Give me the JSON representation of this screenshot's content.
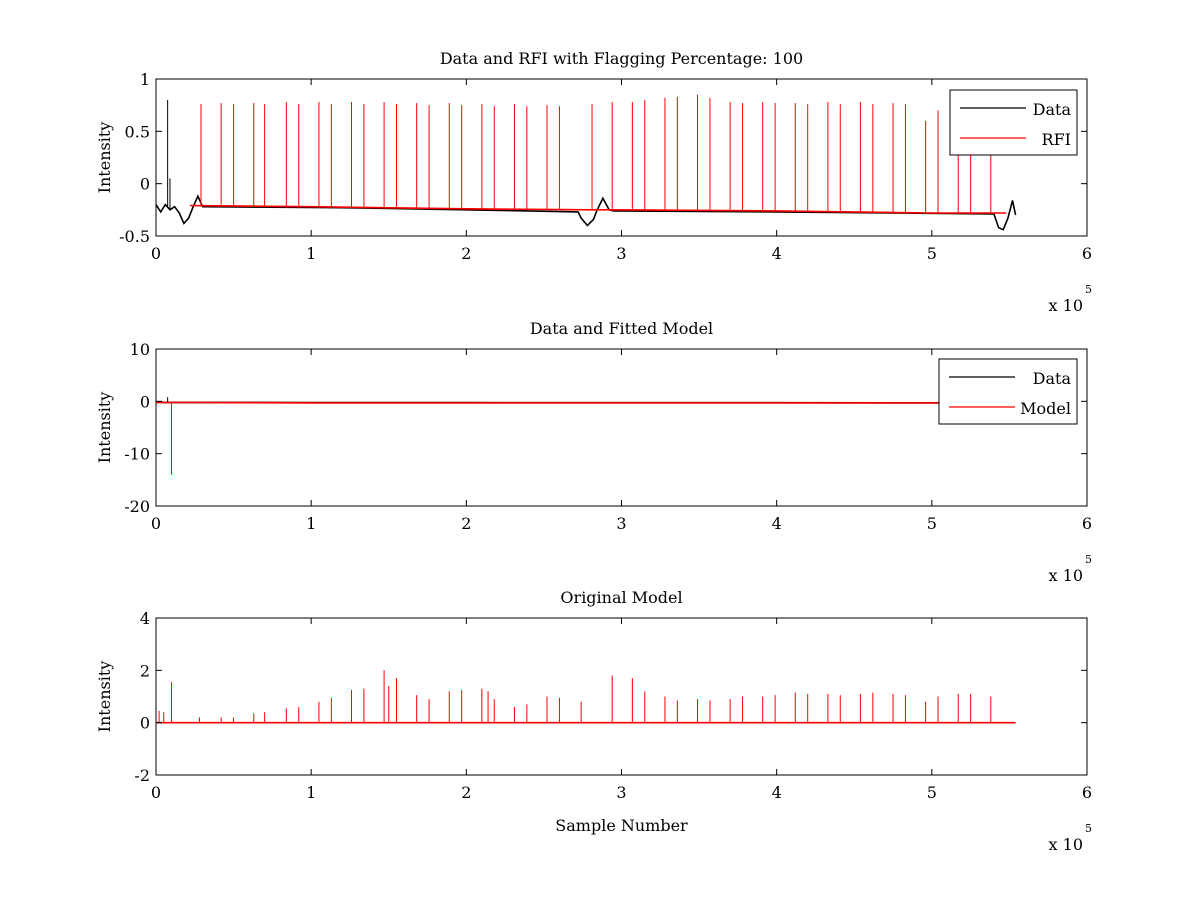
{
  "figure": {
    "background": "#ffffff"
  },
  "chart_data": [
    {
      "type": "line",
      "title": "Data and RFI with Flagging Percentage: 100",
      "xlabel": "",
      "ylabel": "Intensity",
      "xlim": [
        0,
        600000
      ],
      "ylim": [
        -0.5,
        1
      ],
      "xticks": [
        0,
        100000,
        200000,
        300000,
        400000,
        500000,
        600000
      ],
      "xtick_labels": [
        "0",
        "1",
        "2",
        "3",
        "4",
        "5",
        "6"
      ],
      "yticks": [
        -0.5,
        0,
        0.5,
        1
      ],
      "ytick_labels": [
        "-0.5",
        "0",
        "0.5",
        "1"
      ],
      "x_exponent": {
        "base": "x 10",
        "power": "5"
      },
      "grid": false,
      "legend": "top-right",
      "series": [
        {
          "name": "Data",
          "color": "#000000",
          "x": [
            0,
            3000,
            6000,
            9000,
            12000,
            15000,
            18000,
            21000,
            24000,
            27000,
            30000,
            120000,
            240000,
            272000,
            274000,
            278000,
            282000,
            284000,
            288000,
            292000,
            295000,
            400000,
            540000,
            543000,
            546000,
            549000,
            552000,
            554000
          ],
          "y": [
            -0.2,
            -0.27,
            -0.2,
            -0.25,
            -0.22,
            -0.28,
            -0.38,
            -0.33,
            -0.22,
            -0.12,
            -0.22,
            -0.23,
            -0.26,
            -0.27,
            -0.33,
            -0.4,
            -0.34,
            -0.26,
            -0.14,
            -0.25,
            -0.26,
            -0.27,
            -0.29,
            -0.42,
            -0.44,
            -0.33,
            -0.16,
            -0.3
          ],
          "spikes_x": [
            7500,
            9000
          ],
          "spikes_y": [
            0.8,
            0.05
          ]
        },
        {
          "name": "RFI",
          "color": "#ff0000",
          "x": [
            22000,
            100000,
            200000,
            280000,
            294000,
            400000,
            500000,
            548000
          ],
          "y": [
            -0.21,
            -0.22,
            -0.24,
            -0.25,
            -0.25,
            -0.26,
            -0.28,
            -0.28
          ],
          "spikes_x": [
            29000,
            42000,
            50000,
            63000,
            70000,
            84000,
            92000,
            105000,
            113000,
            126000,
            134000,
            147000,
            155000,
            168000,
            176000,
            189000,
            197000,
            210000,
            218000,
            231000,
            239000,
            252000,
            260000,
            281000,
            294000,
            307000,
            315000,
            328000,
            336000,
            349000,
            357000,
            370000,
            378000,
            391000,
            399000,
            412000,
            420000,
            433000,
            441000,
            454000,
            462000,
            475000,
            483000,
            496000,
            504000,
            517000,
            525000,
            538000
          ],
          "spikes_y": [
            0.76,
            0.77,
            0.76,
            0.77,
            0.76,
            0.78,
            0.76,
            0.78,
            0.76,
            0.78,
            0.76,
            0.78,
            0.76,
            0.77,
            0.75,
            0.77,
            0.75,
            0.76,
            0.74,
            0.76,
            0.74,
            0.75,
            0.74,
            0.76,
            0.78,
            0.78,
            0.8,
            0.82,
            0.83,
            0.85,
            0.82,
            0.78,
            0.77,
            0.78,
            0.77,
            0.77,
            0.76,
            0.78,
            0.76,
            0.78,
            0.76,
            0.77,
            0.76,
            0.6,
            0.7,
            0.6,
            0.75,
            0.6
          ]
        }
      ]
    },
    {
      "type": "line",
      "title": "Data and Fitted Model",
      "xlabel": "",
      "ylabel": "Intensity",
      "xlim": [
        0,
        600000
      ],
      "ylim": [
        -20,
        10
      ],
      "xticks": [
        0,
        100000,
        200000,
        300000,
        400000,
        500000,
        600000
      ],
      "xtick_labels": [
        "0",
        "1",
        "2",
        "3",
        "4",
        "5",
        "6"
      ],
      "yticks": [
        -20,
        -10,
        0,
        10
      ],
      "ytick_labels": [
        "-20",
        "-10",
        "0",
        "10"
      ],
      "x_exponent": {
        "base": "x 10",
        "power": "5"
      },
      "grid": false,
      "legend": "top-right",
      "series": [
        {
          "name": "Data",
          "color": "#000000",
          "x": [
            0,
            100000,
            200000,
            300000,
            400000,
            500000,
            554000
          ],
          "y": [
            -0.2,
            -0.23,
            -0.25,
            -0.26,
            -0.27,
            -0.28,
            -0.3
          ],
          "spikes_x": [
            7500
          ],
          "spikes_y": [
            0.8
          ]
        },
        {
          "name": "Model",
          "color": "#ff0000",
          "x": [
            0,
            100000,
            200000,
            300000,
            400000,
            500000,
            554000
          ],
          "y": [
            -0.2,
            -0.3,
            -0.3,
            -0.3,
            -0.3,
            -0.3,
            -0.3
          ],
          "spikes_x": [
            10000
          ],
          "spikes_y": [
            -14
          ]
        }
      ]
    },
    {
      "type": "line",
      "title": "Original Model",
      "xlabel": "Sample Number",
      "ylabel": "Intensity",
      "xlim": [
        0,
        600000
      ],
      "ylim": [
        -2,
        4
      ],
      "xticks": [
        0,
        100000,
        200000,
        300000,
        400000,
        500000,
        600000
      ],
      "xtick_labels": [
        "0",
        "1",
        "2",
        "3",
        "4",
        "5",
        "6"
      ],
      "yticks": [
        -2,
        0,
        2,
        4
      ],
      "ytick_labels": [
        "-2",
        "0",
        "2",
        "4"
      ],
      "x_exponent": {
        "base": "x 10",
        "power": "5"
      },
      "grid": false,
      "legend": "none",
      "series": [
        {
          "color": "#ff0000",
          "x": [
            0,
            554000
          ],
          "y": [
            0,
            0
          ],
          "spikes_x": [
            2000,
            5000,
            10000,
            28000,
            42000,
            50000,
            63000,
            70000,
            84000,
            92000,
            105000,
            113000,
            126000,
            134000,
            147000,
            150000,
            155000,
            168000,
            176000,
            189000,
            197000,
            210000,
            214000,
            218000,
            231000,
            239000,
            252000,
            260000,
            274000,
            294000,
            307000,
            315000,
            328000,
            336000,
            349000,
            357000,
            370000,
            378000,
            391000,
            399000,
            412000,
            420000,
            433000,
            441000,
            454000,
            462000,
            475000,
            483000,
            496000,
            504000,
            517000,
            525000,
            538000
          ],
          "spikes_y": [
            0.45,
            0.4,
            1.55,
            0.2,
            0.2,
            0.2,
            0.35,
            0.4,
            0.55,
            0.6,
            0.8,
            0.95,
            1.25,
            1.3,
            2.0,
            1.4,
            1.7,
            1.05,
            0.9,
            1.2,
            1.25,
            1.3,
            1.2,
            0.9,
            0.6,
            0.7,
            1.0,
            0.95,
            0.8,
            1.8,
            1.7,
            1.2,
            1.0,
            0.85,
            0.9,
            0.85,
            0.9,
            1.0,
            1.0,
            1.05,
            1.15,
            1.1,
            1.1,
            1.05,
            1.1,
            1.15,
            1.1,
            1.05,
            0.8,
            1.0,
            1.1,
            1.1,
            1.0
          ]
        }
      ]
    }
  ]
}
